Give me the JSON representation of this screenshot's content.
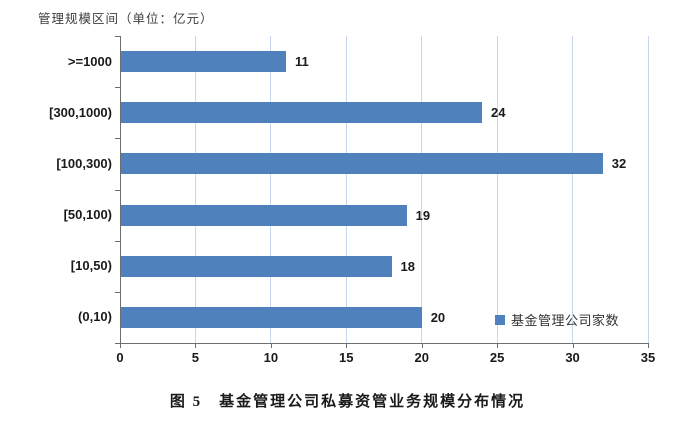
{
  "chart_data": {
    "type": "bar",
    "orientation": "horizontal",
    "axis_title": "管理规模区间（单位：亿元）",
    "categories": [
      ">=1000",
      "[300,1000)",
      "[100,300)",
      "[50,100)",
      "[10,50)",
      "(0,10)"
    ],
    "values": [
      11,
      24,
      32,
      19,
      18,
      20
    ],
    "series_name": "基金管理公司家数",
    "xlabel": "",
    "ylabel": "管理规模区间（单位：亿元）",
    "xlim": [
      0,
      35
    ],
    "xticks": [
      0,
      5,
      10,
      15,
      20,
      25,
      30,
      35
    ],
    "grid": "vertical gridlines every 5 units",
    "legend_position": "inside bottom-right",
    "colors": {
      "bar": "#4f81bd",
      "gridline": "#c9d7ee",
      "axis": "#6e6e6e",
      "label": "#1a1a1a",
      "title": "#3d3d3d"
    }
  },
  "caption": "图 5　基金管理公司私募资管业务规模分布情况"
}
